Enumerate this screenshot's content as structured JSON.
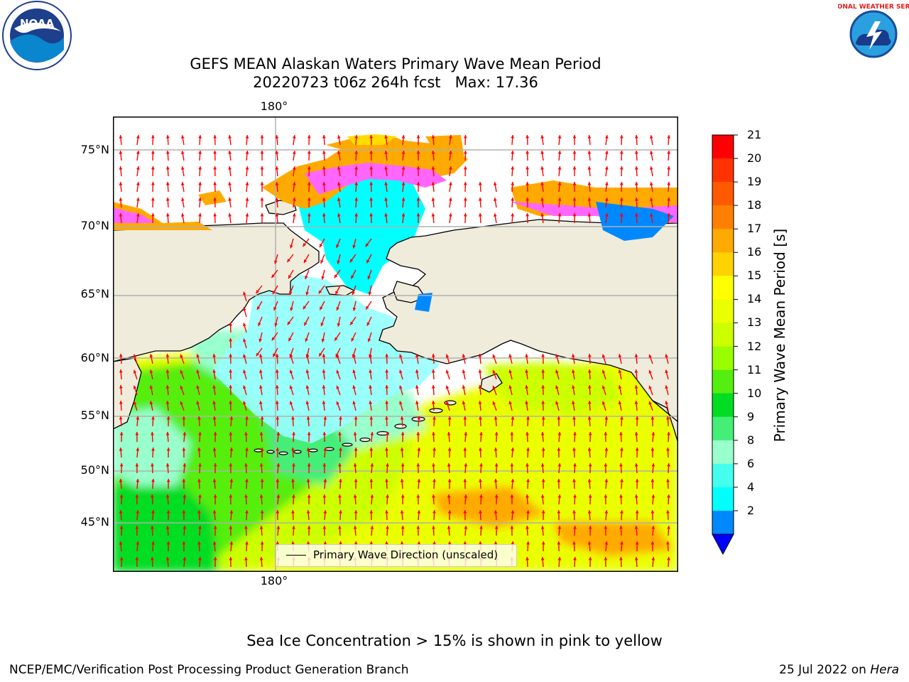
{
  "header": {
    "title_line1": "GEFS MEAN Alaskan Waters Primary Wave Mean Period",
    "title_line2": "20220723 t06z 264h fcst   Max: 17.36"
  },
  "logos": {
    "left": "NOAA",
    "right": "NATIONAL WEATHER SERVICE"
  },
  "map": {
    "lat_labels": [
      "75°N",
      "70°N",
      "65°N",
      "60°N",
      "55°N",
      "50°N",
      "45°N"
    ],
    "lon_label_top": "180°",
    "lon_label_bottom": "180°",
    "legend_label": "Primary Wave Direction (unscaled)",
    "land_color": "#efecdc",
    "arrow_color": "#ff0000"
  },
  "colorbar": {
    "label": "Primary Wave Mean Period [s]",
    "ticks": [
      "21",
      "20",
      "19",
      "18",
      "17",
      "16",
      "15",
      "14",
      "13",
      "12",
      "11",
      "10",
      "9",
      "8",
      "6",
      "4",
      "2"
    ],
    "colors": [
      "#ff0000",
      "#ff3300",
      "#ff5a00",
      "#ff8000",
      "#ffaa00",
      "#ffd200",
      "#ffff00",
      "#eaff00",
      "#ccff00",
      "#99ff00",
      "#55ee11",
      "#00dd22",
      "#44ee77",
      "#99ffcc",
      "#44ffee",
      "#00ffff",
      "#0088ff",
      "#0000ff"
    ]
  },
  "footnote": "Sea Ice Concentration > 15% is shown in pink to yellow",
  "footer": {
    "left": "NCEP/EMC/Verification Post Processing Product Generation Branch",
    "right_prefix": "25 Jul 2022 on ",
    "right_machine": "Hera"
  }
}
